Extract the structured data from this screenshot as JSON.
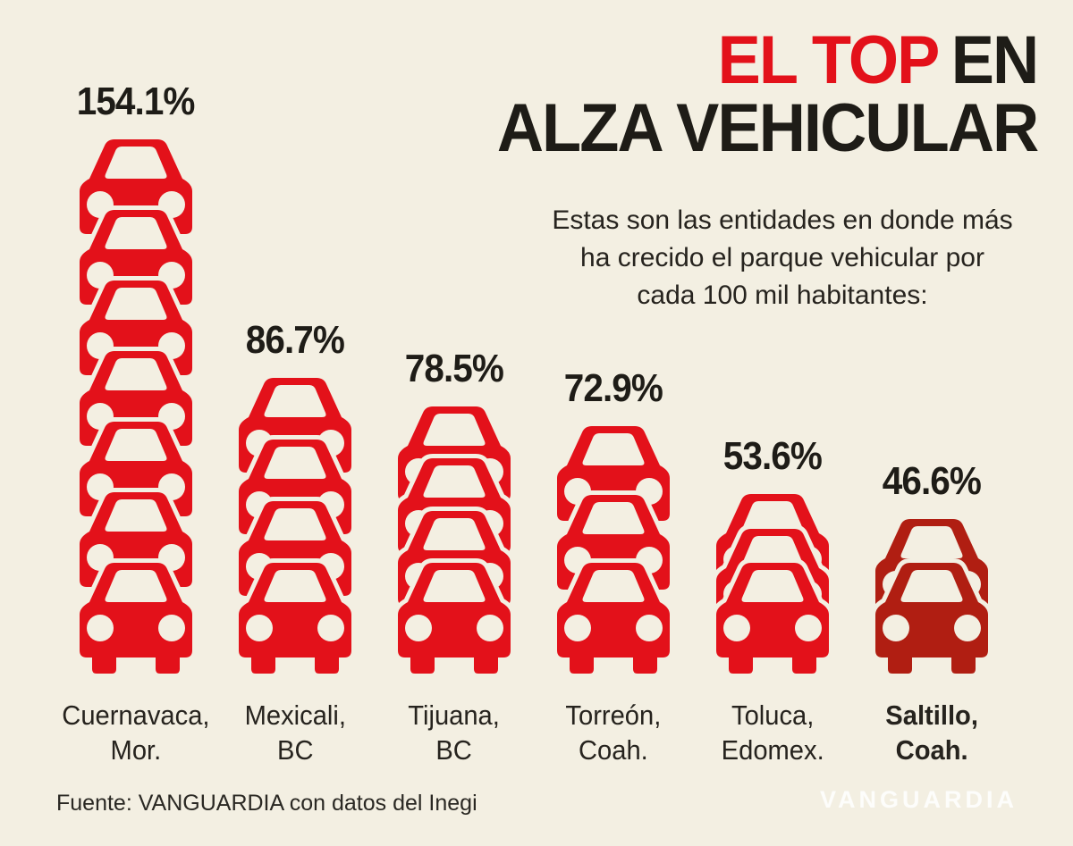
{
  "page": {
    "background": "#f3efe2"
  },
  "title": {
    "line1_accent": "EL TOP",
    "line1_rest": "EN",
    "line2": "ALZA VEHICULAR",
    "accent_color": "#e3111a",
    "text_color": "#1e1c17"
  },
  "subtitle": {
    "lines": [
      "Estas son las entidades en donde más",
      "ha crecido el parque vehicular por",
      "cada 100 mil habitantes:"
    ]
  },
  "source": {
    "text": "Fuente: VANGUARDIA con datos del Inegi"
  },
  "watermark": {
    "text": "VANGUARDIA"
  },
  "colors": {
    "background": "#f3efe2",
    "car_red": "#e3111a",
    "car_dark_red": "#b01e12",
    "text_black": "#1e1c17"
  },
  "chart_data": {
    "type": "bar",
    "style": "pictogram-stacked-car-icons",
    "title": "EL TOP EN ALZA VEHICULAR",
    "unit": "%",
    "grid": false,
    "legend": "none",
    "ylim": [
      0,
      160
    ],
    "categories": [
      "Cuernavaca, Mor.",
      "Mexicali, BC",
      "Tijuana, BC",
      "Torreón, Coah.",
      "Toluca, Edomex.",
      "Saltillo, Coah."
    ],
    "values": [
      154.1,
      86.7,
      78.5,
      72.9,
      53.6,
      46.6
    ],
    "columns": [
      {
        "label_lines": [
          "Cuernavaca,",
          "Mor."
        ],
        "value": 154.1,
        "value_label": "154.1%",
        "car_count": 7,
        "color": "#e3111a",
        "emphasis": false
      },
      {
        "label_lines": [
          "Mexicali,",
          "BC"
        ],
        "value": 86.7,
        "value_label": "86.7%",
        "car_count": 4,
        "color": "#e3111a",
        "emphasis": false
      },
      {
        "label_lines": [
          "Tijuana,",
          "BC"
        ],
        "value": 78.5,
        "value_label": "78.5%",
        "car_count": 4,
        "color": "#e3111a",
        "emphasis": false
      },
      {
        "label_lines": [
          "Torreón,",
          "Coah."
        ],
        "value": 72.9,
        "value_label": "72.9%",
        "car_count": 3,
        "color": "#e3111a",
        "emphasis": false
      },
      {
        "label_lines": [
          "Toluca,",
          "Edomex."
        ],
        "value": 53.6,
        "value_label": "53.6%",
        "car_count": 3,
        "color": "#e3111a",
        "emphasis": false
      },
      {
        "label_lines": [
          "Saltillo,",
          "Coah."
        ],
        "value": 46.6,
        "value_label": "46.6%",
        "car_count": 2,
        "color": "#b01e12",
        "emphasis": true
      }
    ]
  }
}
